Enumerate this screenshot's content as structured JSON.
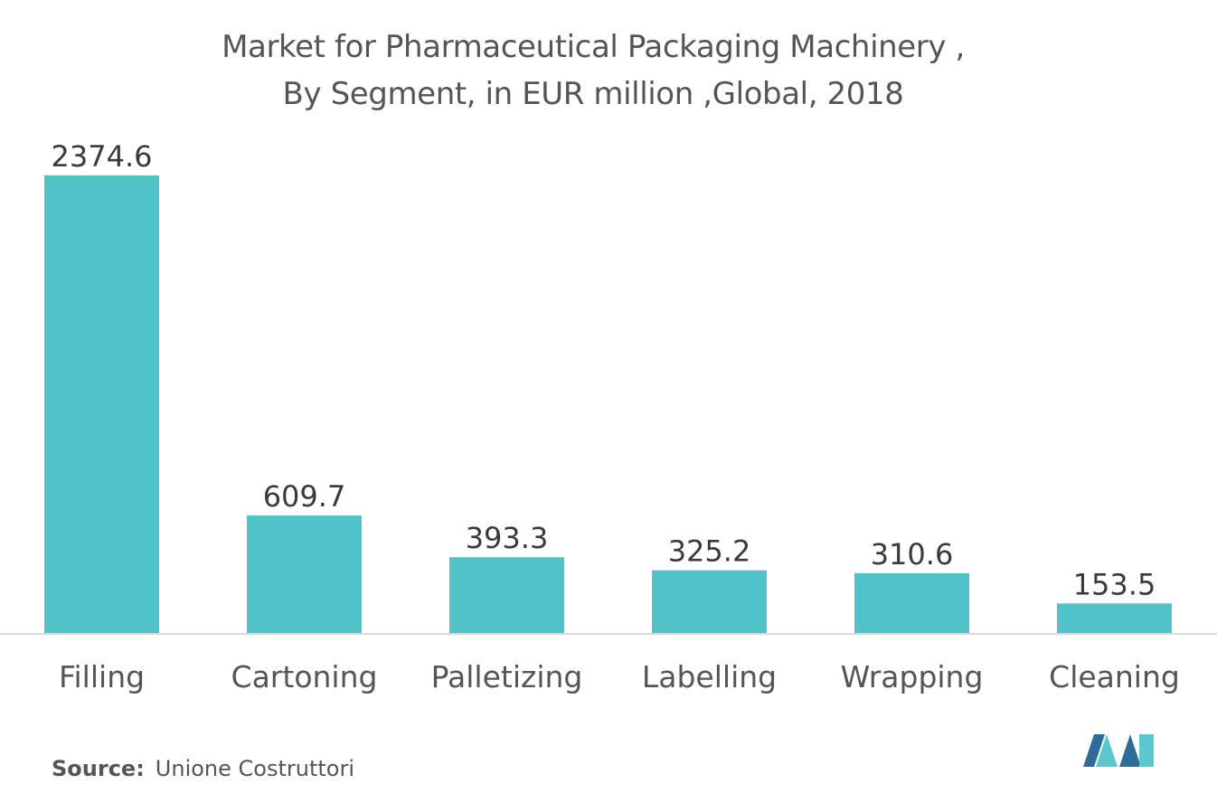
{
  "title": {
    "line1": "Market for Pharmaceutical Packaging Machinery ,",
    "line2": "By Segment, in EUR million ,Global, 2018"
  },
  "source": {
    "label": "Source:",
    "text": "Unione Costruttori"
  },
  "colors": {
    "bar": "#50c3c9",
    "axis": "#d9d9d9",
    "text": "#555555",
    "value_label": "#3a3a3a",
    "logo_dark": "#2f6c99",
    "logo_light": "#5cc7cc"
  },
  "chart_data": {
    "type": "bar",
    "categories": [
      "Filling",
      "Cartoning",
      "Palletizing",
      "Labelling",
      "Wrapping",
      "Cleaning"
    ],
    "values": [
      2374.6,
      609.7,
      393.3,
      325.2,
      310.6,
      153.5
    ],
    "value_labels": [
      "2374.6",
      "609.7",
      "393.3",
      "325.2",
      "310.6",
      "153.5"
    ],
    "title": "Market for Pharmaceutical Packaging Machinery , By Segment, in EUR million ,Global, 2018",
    "xlabel": "",
    "ylabel": "",
    "ylim": [
      0,
      2374.6
    ],
    "grid": false,
    "legend": "none"
  }
}
